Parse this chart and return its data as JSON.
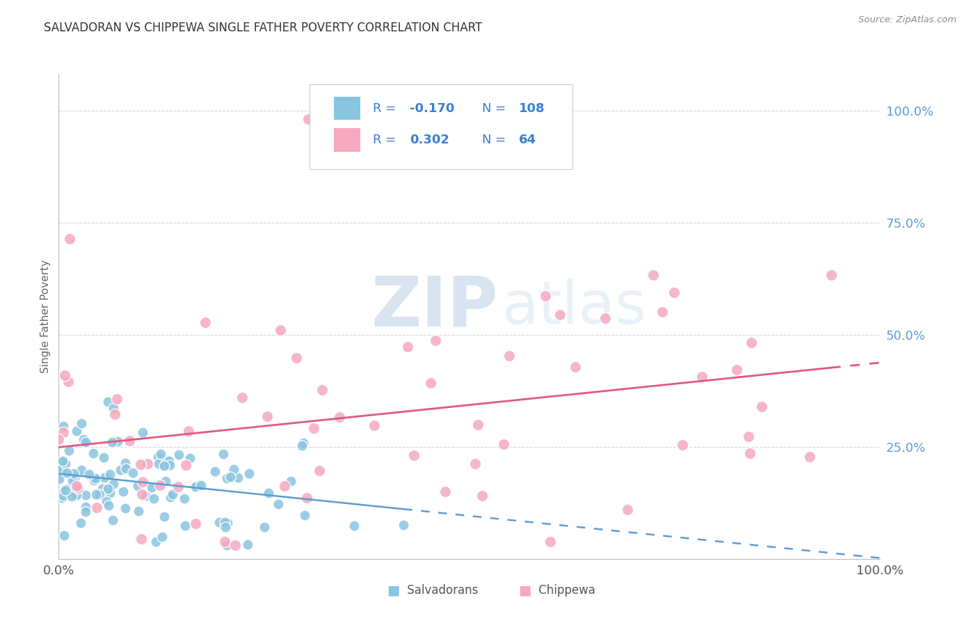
{
  "title": "SALVADORAN VS CHIPPEWA SINGLE FATHER POVERTY CORRELATION CHART",
  "source": "Source: ZipAtlas.com",
  "ylabel": "Single Father Poverty",
  "ytick_labels": [
    "25.0%",
    "50.0%",
    "75.0%",
    "100.0%"
  ],
  "ytick_values": [
    0.25,
    0.5,
    0.75,
    1.0
  ],
  "xtick_labels": [
    "0.0%",
    "100.0%"
  ],
  "xtick_values": [
    0.0,
    1.0
  ],
  "salvadoran_color": "#89c4e0",
  "chippewa_color": "#f5a8c0",
  "salvadoran_line_color": "#5b9bd5",
  "chippewa_line_color": "#e05880",
  "ytick_color": "#5b9bd5",
  "title_color": "#333333",
  "source_color": "#888888",
  "grid_color": "#d0d8e8",
  "watermark_zip_color": "#c8dcea",
  "watermark_atlas_color": "#d8e8f0",
  "legend_text_color": "#3a7fd5",
  "legend_border_color": "#cccccc",
  "legend_bg": "#ffffff",
  "R_salvadoran": -0.17,
  "R_chippewa": 0.302,
  "N_salvadoran": 108,
  "N_chippewa": 64
}
